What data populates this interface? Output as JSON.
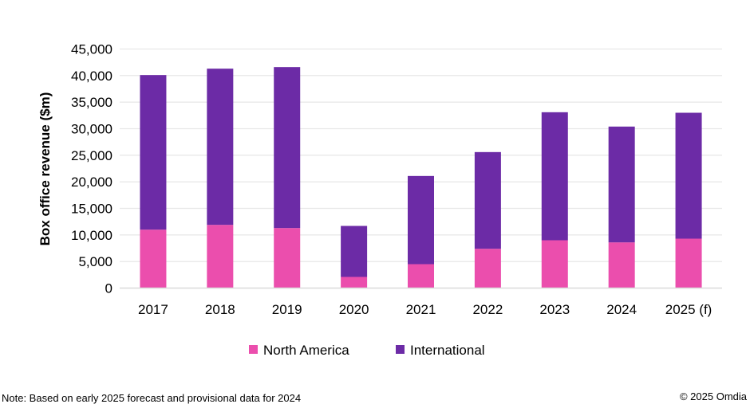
{
  "chart_data": {
    "type": "bar",
    "stacked": true,
    "title": "",
    "xlabel": "",
    "ylabel": "Box office revenue ($m)",
    "ylim": [
      0,
      45000
    ],
    "yticks": [
      0,
      5000,
      10000,
      15000,
      20000,
      25000,
      30000,
      35000,
      40000,
      45000
    ],
    "ytick_labels": [
      "0",
      "5,000",
      "10,000",
      "15,000",
      "20,000",
      "25,000",
      "30,000",
      "35,000",
      "40,000",
      "45,000"
    ],
    "grid": true,
    "legend_position": "bottom",
    "categories": [
      "2017",
      "2018",
      "2019",
      "2020",
      "2021",
      "2022",
      "2023",
      "2024",
      "2025 (f)"
    ],
    "series": [
      {
        "name": "North America",
        "color": "#EB4EAD",
        "values": [
          11000,
          11900,
          11300,
          2100,
          4500,
          7400,
          9000,
          8600,
          9300
        ]
      },
      {
        "name": "International",
        "color": "#6C2BA6",
        "values": [
          29100,
          29400,
          30300,
          9600,
          16600,
          18200,
          24100,
          21800,
          23700
        ]
      }
    ]
  },
  "footer": {
    "note": "Note: Based on early 2025 forecast and provisional data for 2024",
    "copyright": "© 2025 Omdia"
  }
}
